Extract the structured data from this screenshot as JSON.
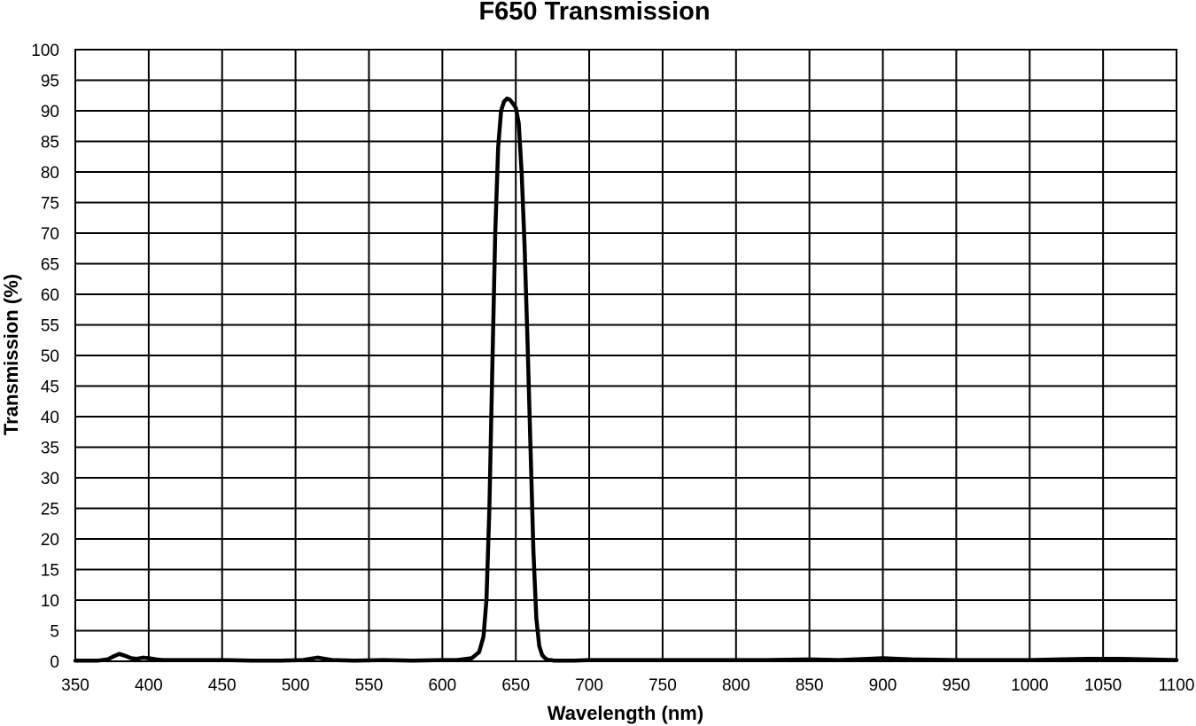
{
  "chart_data": {
    "type": "line",
    "title": "F650 Transmission",
    "xlabel": "Wavelength (nm)",
    "ylabel": "Transmission (%)",
    "xlim": [
      350,
      1100
    ],
    "ylim": [
      0,
      100
    ],
    "x_ticks": [
      "350",
      "400",
      "450",
      "500",
      "550",
      "600",
      "650",
      "700",
      "750",
      "800",
      "850",
      "900",
      "950",
      "1000",
      "1050",
      "1100"
    ],
    "y_ticks": [
      "0",
      "5",
      "10",
      "15",
      "20",
      "25",
      "30",
      "35",
      "40",
      "45",
      "50",
      "55",
      "60",
      "65",
      "70",
      "75",
      "80",
      "85",
      "90",
      "95",
      "100"
    ],
    "grid": true,
    "line_color": "#000000",
    "series": [
      {
        "x": [
          350,
          365,
          372,
          376,
          380,
          384,
          388,
          392,
          396,
          400,
          405,
          410,
          420,
          430,
          440,
          450,
          470,
          490,
          505,
          510,
          515,
          520,
          525,
          540,
          560,
          580,
          600,
          610,
          620,
          625,
          628,
          630,
          632,
          634,
          636,
          638,
          640,
          642,
          644,
          646,
          648,
          650,
          652,
          654,
          656,
          658,
          660,
          662,
          664,
          666,
          668,
          670,
          672,
          674,
          676,
          680,
          690,
          700,
          720,
          750,
          780,
          800,
          820,
          850,
          870,
          890,
          900,
          910,
          920,
          950,
          980,
          1000,
          1020,
          1040,
          1060,
          1080,
          1100
        ],
        "y": [
          0.1,
          0.1,
          0.3,
          0.8,
          1.2,
          0.9,
          0.5,
          0.4,
          0.6,
          0.5,
          0.3,
          0.2,
          0.2,
          0.2,
          0.2,
          0.2,
          0.1,
          0.1,
          0.2,
          0.4,
          0.6,
          0.4,
          0.2,
          0.1,
          0.2,
          0.1,
          0.2,
          0.2,
          0.5,
          1.5,
          4,
          10,
          25,
          48,
          70,
          84,
          90,
          91.5,
          92,
          91.8,
          91.2,
          90.5,
          88,
          80,
          68,
          52,
          35,
          18,
          7,
          2.5,
          1.0,
          0.5,
          0.2,
          0.2,
          0.1,
          0.1,
          0.1,
          0.2,
          0.2,
          0.2,
          0.2,
          0.2,
          0.2,
          0.3,
          0.2,
          0.4,
          0.5,
          0.4,
          0.3,
          0.2,
          0.2,
          0.2,
          0.3,
          0.4,
          0.4,
          0.3,
          0.2
        ]
      }
    ]
  }
}
